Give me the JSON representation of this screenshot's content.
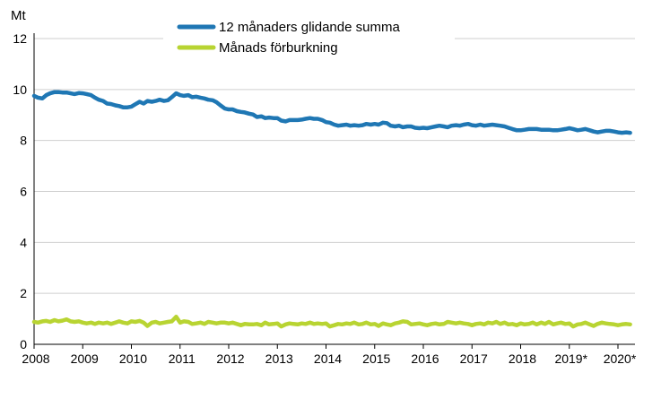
{
  "chart_data": {
    "type": "line",
    "y_unit": "Mt",
    "ylim": [
      0,
      12
    ],
    "y_ticks": [
      0,
      2,
      4,
      6,
      8,
      10,
      12
    ],
    "x_range": [
      2008,
      2020.33
    ],
    "x_tick_labels": [
      "2008",
      "2009",
      "2010",
      "2011",
      "2012",
      "2013",
      "2014",
      "2015",
      "2016",
      "2017",
      "2018",
      "2019*",
      "2020*"
    ],
    "grid": true,
    "legend_position": "top-center",
    "series": [
      {
        "name": "12 månaders glidande summa",
        "color": "#1f77b4",
        "values": [
          [
            2008.0,
            9.75
          ],
          [
            2008.08,
            9.68
          ],
          [
            2008.17,
            9.65
          ],
          [
            2008.25,
            9.78
          ],
          [
            2008.33,
            9.85
          ],
          [
            2008.42,
            9.9
          ],
          [
            2008.5,
            9.9
          ],
          [
            2008.58,
            9.88
          ],
          [
            2008.67,
            9.88
          ],
          [
            2008.75,
            9.85
          ],
          [
            2008.83,
            9.82
          ],
          [
            2008.92,
            9.86
          ],
          [
            2009.0,
            9.85
          ],
          [
            2009.08,
            9.82
          ],
          [
            2009.17,
            9.78
          ],
          [
            2009.25,
            9.68
          ],
          [
            2009.33,
            9.6
          ],
          [
            2009.42,
            9.55
          ],
          [
            2009.5,
            9.45
          ],
          [
            2009.58,
            9.43
          ],
          [
            2009.67,
            9.38
          ],
          [
            2009.75,
            9.35
          ],
          [
            2009.83,
            9.3
          ],
          [
            2009.92,
            9.3
          ],
          [
            2010.0,
            9.33
          ],
          [
            2010.08,
            9.42
          ],
          [
            2010.17,
            9.52
          ],
          [
            2010.25,
            9.45
          ],
          [
            2010.33,
            9.55
          ],
          [
            2010.42,
            9.52
          ],
          [
            2010.5,
            9.55
          ],
          [
            2010.58,
            9.6
          ],
          [
            2010.67,
            9.55
          ],
          [
            2010.75,
            9.58
          ],
          [
            2010.83,
            9.7
          ],
          [
            2010.92,
            9.85
          ],
          [
            2011.0,
            9.78
          ],
          [
            2011.08,
            9.75
          ],
          [
            2011.17,
            9.78
          ],
          [
            2011.25,
            9.7
          ],
          [
            2011.33,
            9.72
          ],
          [
            2011.42,
            9.68
          ],
          [
            2011.5,
            9.65
          ],
          [
            2011.58,
            9.6
          ],
          [
            2011.67,
            9.58
          ],
          [
            2011.75,
            9.5
          ],
          [
            2011.83,
            9.38
          ],
          [
            2011.92,
            9.25
          ],
          [
            2012.0,
            9.22
          ],
          [
            2012.08,
            9.22
          ],
          [
            2012.17,
            9.15
          ],
          [
            2012.25,
            9.12
          ],
          [
            2012.33,
            9.1
          ],
          [
            2012.42,
            9.05
          ],
          [
            2012.5,
            9.02
          ],
          [
            2012.58,
            8.92
          ],
          [
            2012.67,
            8.95
          ],
          [
            2012.75,
            8.88
          ],
          [
            2012.83,
            8.9
          ],
          [
            2012.92,
            8.88
          ],
          [
            2013.0,
            8.88
          ],
          [
            2013.08,
            8.78
          ],
          [
            2013.17,
            8.75
          ],
          [
            2013.25,
            8.8
          ],
          [
            2013.33,
            8.8
          ],
          [
            2013.42,
            8.8
          ],
          [
            2013.5,
            8.82
          ],
          [
            2013.58,
            8.85
          ],
          [
            2013.67,
            8.88
          ],
          [
            2013.75,
            8.85
          ],
          [
            2013.83,
            8.85
          ],
          [
            2013.92,
            8.8
          ],
          [
            2014.0,
            8.72
          ],
          [
            2014.08,
            8.7
          ],
          [
            2014.17,
            8.62
          ],
          [
            2014.25,
            8.58
          ],
          [
            2014.33,
            8.6
          ],
          [
            2014.42,
            8.62
          ],
          [
            2014.5,
            8.58
          ],
          [
            2014.58,
            8.6
          ],
          [
            2014.67,
            8.58
          ],
          [
            2014.75,
            8.6
          ],
          [
            2014.83,
            8.65
          ],
          [
            2014.92,
            8.62
          ],
          [
            2015.0,
            8.65
          ],
          [
            2015.08,
            8.62
          ],
          [
            2015.17,
            8.7
          ],
          [
            2015.25,
            8.68
          ],
          [
            2015.33,
            8.58
          ],
          [
            2015.42,
            8.55
          ],
          [
            2015.5,
            8.58
          ],
          [
            2015.58,
            8.52
          ],
          [
            2015.67,
            8.55
          ],
          [
            2015.75,
            8.55
          ],
          [
            2015.83,
            8.5
          ],
          [
            2015.92,
            8.48
          ],
          [
            2016.0,
            8.5
          ],
          [
            2016.08,
            8.48
          ],
          [
            2016.17,
            8.52
          ],
          [
            2016.25,
            8.55
          ],
          [
            2016.33,
            8.58
          ],
          [
            2016.42,
            8.55
          ],
          [
            2016.5,
            8.52
          ],
          [
            2016.58,
            8.58
          ],
          [
            2016.67,
            8.6
          ],
          [
            2016.75,
            8.58
          ],
          [
            2016.83,
            8.62
          ],
          [
            2016.92,
            8.65
          ],
          [
            2017.0,
            8.6
          ],
          [
            2017.08,
            8.58
          ],
          [
            2017.17,
            8.62
          ],
          [
            2017.25,
            8.58
          ],
          [
            2017.33,
            8.6
          ],
          [
            2017.42,
            8.62
          ],
          [
            2017.5,
            8.6
          ],
          [
            2017.58,
            8.58
          ],
          [
            2017.67,
            8.55
          ],
          [
            2017.75,
            8.5
          ],
          [
            2017.83,
            8.45
          ],
          [
            2017.92,
            8.4
          ],
          [
            2018.0,
            8.4
          ],
          [
            2018.08,
            8.42
          ],
          [
            2018.17,
            8.45
          ],
          [
            2018.25,
            8.45
          ],
          [
            2018.33,
            8.45
          ],
          [
            2018.42,
            8.42
          ],
          [
            2018.5,
            8.42
          ],
          [
            2018.58,
            8.42
          ],
          [
            2018.67,
            8.4
          ],
          [
            2018.75,
            8.4
          ],
          [
            2018.83,
            8.42
          ],
          [
            2018.92,
            8.45
          ],
          [
            2019.0,
            8.48
          ],
          [
            2019.08,
            8.45
          ],
          [
            2019.17,
            8.4
          ],
          [
            2019.25,
            8.42
          ],
          [
            2019.33,
            8.45
          ],
          [
            2019.42,
            8.4
          ],
          [
            2019.5,
            8.35
          ],
          [
            2019.58,
            8.32
          ],
          [
            2019.67,
            8.35
          ],
          [
            2019.75,
            8.38
          ],
          [
            2019.83,
            8.38
          ],
          [
            2019.92,
            8.35
          ],
          [
            2020.0,
            8.32
          ],
          [
            2020.08,
            8.3
          ],
          [
            2020.17,
            8.32
          ],
          [
            2020.25,
            8.3
          ]
        ]
      },
      {
        "name": "Månads förburkning",
        "color": "#b8d432",
        "values": [
          [
            2008.0,
            0.88
          ],
          [
            2008.08,
            0.85
          ],
          [
            2008.17,
            0.9
          ],
          [
            2008.25,
            0.92
          ],
          [
            2008.33,
            0.88
          ],
          [
            2008.42,
            0.95
          ],
          [
            2008.5,
            0.9
          ],
          [
            2008.58,
            0.93
          ],
          [
            2008.67,
            0.98
          ],
          [
            2008.75,
            0.9
          ],
          [
            2008.83,
            0.88
          ],
          [
            2008.92,
            0.9
          ],
          [
            2009.0,
            0.85
          ],
          [
            2009.08,
            0.82
          ],
          [
            2009.17,
            0.85
          ],
          [
            2009.25,
            0.8
          ],
          [
            2009.33,
            0.85
          ],
          [
            2009.42,
            0.82
          ],
          [
            2009.5,
            0.85
          ],
          [
            2009.58,
            0.8
          ],
          [
            2009.67,
            0.85
          ],
          [
            2009.75,
            0.9
          ],
          [
            2009.83,
            0.85
          ],
          [
            2009.92,
            0.82
          ],
          [
            2010.0,
            0.9
          ],
          [
            2010.08,
            0.88
          ],
          [
            2010.17,
            0.92
          ],
          [
            2010.25,
            0.85
          ],
          [
            2010.33,
            0.72
          ],
          [
            2010.42,
            0.85
          ],
          [
            2010.5,
            0.88
          ],
          [
            2010.58,
            0.82
          ],
          [
            2010.67,
            0.85
          ],
          [
            2010.75,
            0.88
          ],
          [
            2010.83,
            0.9
          ],
          [
            2010.92,
            1.08
          ],
          [
            2011.0,
            0.85
          ],
          [
            2011.08,
            0.9
          ],
          [
            2011.17,
            0.88
          ],
          [
            2011.25,
            0.8
          ],
          [
            2011.33,
            0.82
          ],
          [
            2011.42,
            0.85
          ],
          [
            2011.5,
            0.8
          ],
          [
            2011.58,
            0.88
          ],
          [
            2011.67,
            0.85
          ],
          [
            2011.75,
            0.82
          ],
          [
            2011.83,
            0.85
          ],
          [
            2011.92,
            0.85
          ],
          [
            2012.0,
            0.82
          ],
          [
            2012.08,
            0.85
          ],
          [
            2012.17,
            0.8
          ],
          [
            2012.25,
            0.75
          ],
          [
            2012.33,
            0.8
          ],
          [
            2012.42,
            0.78
          ],
          [
            2012.5,
            0.78
          ],
          [
            2012.58,
            0.8
          ],
          [
            2012.67,
            0.75
          ],
          [
            2012.75,
            0.85
          ],
          [
            2012.83,
            0.78
          ],
          [
            2012.92,
            0.8
          ],
          [
            2013.0,
            0.82
          ],
          [
            2013.08,
            0.7
          ],
          [
            2013.17,
            0.78
          ],
          [
            2013.25,
            0.82
          ],
          [
            2013.33,
            0.8
          ],
          [
            2013.42,
            0.78
          ],
          [
            2013.5,
            0.82
          ],
          [
            2013.58,
            0.8
          ],
          [
            2013.67,
            0.85
          ],
          [
            2013.75,
            0.8
          ],
          [
            2013.83,
            0.82
          ],
          [
            2013.92,
            0.8
          ],
          [
            2014.0,
            0.82
          ],
          [
            2014.08,
            0.7
          ],
          [
            2014.17,
            0.75
          ],
          [
            2014.25,
            0.8
          ],
          [
            2014.33,
            0.78
          ],
          [
            2014.42,
            0.82
          ],
          [
            2014.5,
            0.8
          ],
          [
            2014.58,
            0.85
          ],
          [
            2014.67,
            0.78
          ],
          [
            2014.75,
            0.8
          ],
          [
            2014.83,
            0.85
          ],
          [
            2014.92,
            0.78
          ],
          [
            2015.0,
            0.8
          ],
          [
            2015.08,
            0.72
          ],
          [
            2015.17,
            0.82
          ],
          [
            2015.25,
            0.78
          ],
          [
            2015.33,
            0.75
          ],
          [
            2015.42,
            0.82
          ],
          [
            2015.5,
            0.85
          ],
          [
            2015.58,
            0.9
          ],
          [
            2015.67,
            0.88
          ],
          [
            2015.75,
            0.78
          ],
          [
            2015.83,
            0.8
          ],
          [
            2015.92,
            0.82
          ],
          [
            2016.0,
            0.78
          ],
          [
            2016.08,
            0.75
          ],
          [
            2016.17,
            0.8
          ],
          [
            2016.25,
            0.82
          ],
          [
            2016.33,
            0.78
          ],
          [
            2016.42,
            0.8
          ],
          [
            2016.5,
            0.88
          ],
          [
            2016.58,
            0.85
          ],
          [
            2016.67,
            0.82
          ],
          [
            2016.75,
            0.85
          ],
          [
            2016.83,
            0.82
          ],
          [
            2016.92,
            0.8
          ],
          [
            2017.0,
            0.75
          ],
          [
            2017.08,
            0.8
          ],
          [
            2017.17,
            0.82
          ],
          [
            2017.25,
            0.78
          ],
          [
            2017.33,
            0.85
          ],
          [
            2017.42,
            0.82
          ],
          [
            2017.5,
            0.88
          ],
          [
            2017.58,
            0.8
          ],
          [
            2017.67,
            0.85
          ],
          [
            2017.75,
            0.78
          ],
          [
            2017.83,
            0.8
          ],
          [
            2017.92,
            0.75
          ],
          [
            2018.0,
            0.82
          ],
          [
            2018.08,
            0.78
          ],
          [
            2018.17,
            0.8
          ],
          [
            2018.25,
            0.85
          ],
          [
            2018.33,
            0.78
          ],
          [
            2018.42,
            0.85
          ],
          [
            2018.5,
            0.8
          ],
          [
            2018.58,
            0.88
          ],
          [
            2018.67,
            0.78
          ],
          [
            2018.75,
            0.82
          ],
          [
            2018.83,
            0.85
          ],
          [
            2018.92,
            0.8
          ],
          [
            2019.0,
            0.82
          ],
          [
            2019.08,
            0.7
          ],
          [
            2019.17,
            0.78
          ],
          [
            2019.25,
            0.8
          ],
          [
            2019.33,
            0.85
          ],
          [
            2019.42,
            0.78
          ],
          [
            2019.5,
            0.72
          ],
          [
            2019.58,
            0.8
          ],
          [
            2019.67,
            0.85
          ],
          [
            2019.75,
            0.82
          ],
          [
            2019.83,
            0.8
          ],
          [
            2019.92,
            0.78
          ],
          [
            2020.0,
            0.75
          ],
          [
            2020.08,
            0.78
          ],
          [
            2020.17,
            0.8
          ],
          [
            2020.25,
            0.78
          ]
        ]
      }
    ]
  }
}
